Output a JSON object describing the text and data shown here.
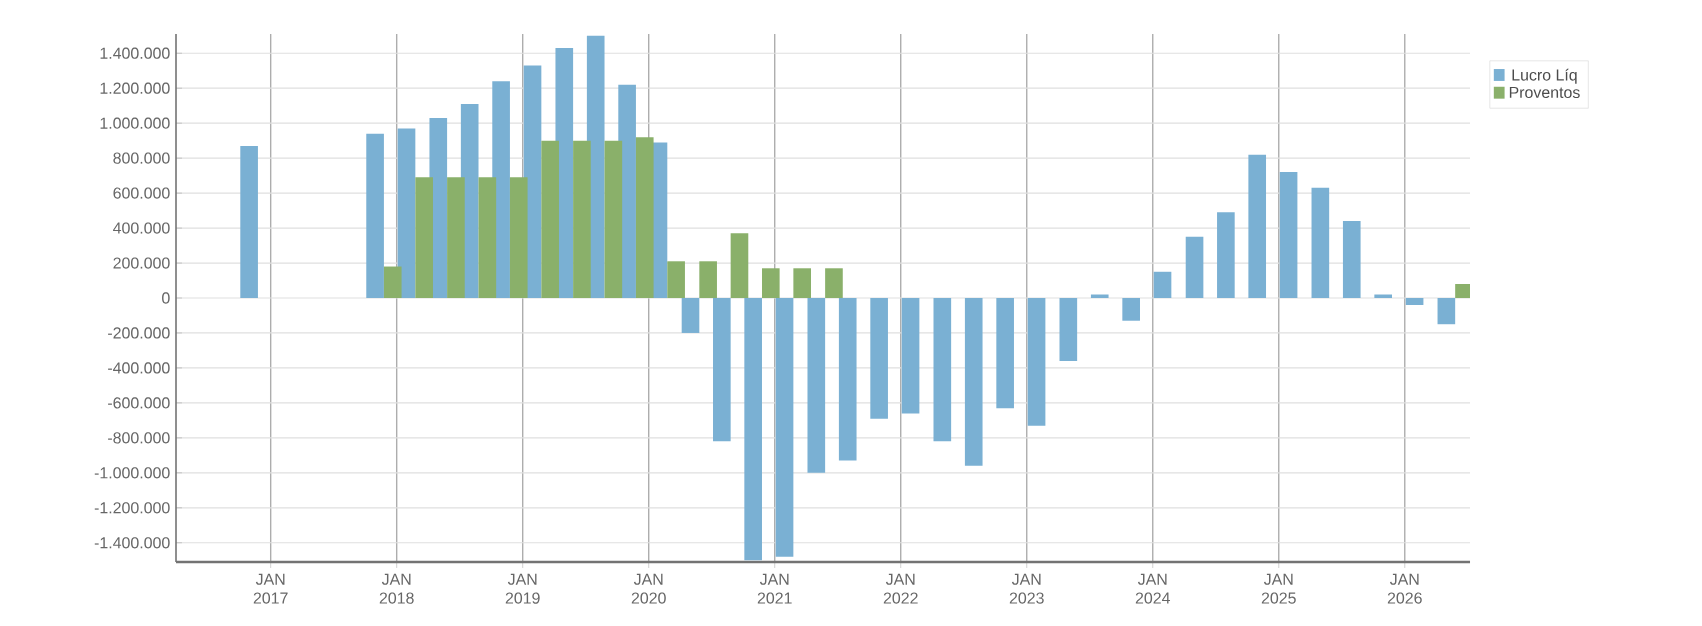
{
  "chart_data": {
    "type": "bar",
    "x": [
      "2016-11-25",
      "2017-11-25",
      "2018-02-24",
      "2018-05-27",
      "2018-08-26",
      "2018-11-25",
      "2019-02-24",
      "2019-05-27",
      "2019-08-26",
      "2019-11-25",
      "2020-02-24",
      "2020-05-27",
      "2020-08-26",
      "2020-11-25",
      "2021-02-24",
      "2021-05-27",
      "2021-08-26",
      "2021-11-25",
      "2022-02-24",
      "2022-05-27",
      "2022-08-26",
      "2022-11-25",
      "2023-02-24",
      "2023-05-27",
      "2023-08-26",
      "2023-11-25",
      "2024-02-24",
      "2024-05-27",
      "2024-08-26",
      "2024-11-25",
      "2025-02-24",
      "2025-05-27",
      "2025-08-26",
      "2025-11-25",
      "2026-02-24",
      "2026-05-27"
    ],
    "series": [
      {
        "name": "Lucro Líq",
        "color": "#7ab0d3",
        "values": [
          870000,
          940000,
          970000,
          1030000,
          1110000,
          1240000,
          1330000,
          1430000,
          1500000,
          1220000,
          890000,
          -200000,
          -820000,
          -1500000,
          -1480000,
          -1000000,
          -930000,
          -690000,
          -660000,
          -820000,
          -960000,
          -630000,
          -730000,
          -360000,
          20000,
          -130000,
          150000,
          350000,
          490000,
          820000,
          720000,
          630000,
          440000,
          20000,
          -40000,
          -150000
        ]
      },
      {
        "name": "Proventos",
        "color": "#8ab06a",
        "values": [
          0,
          180000,
          690000,
          690000,
          690000,
          690000,
          900000,
          900000,
          900000,
          920000,
          210000,
          210000,
          370000,
          170000,
          170000,
          170000,
          0,
          0,
          0,
          0,
          0,
          0,
          0,
          0,
          0,
          0,
          0,
          0,
          0,
          0,
          0,
          0,
          0,
          0,
          0,
          80000
        ]
      }
    ],
    "xlim": [
      "2016-04-01",
      "2026-07-09"
    ],
    "ylim": [
      -1510000,
      1510000
    ],
    "xticks": [
      {
        "value": "2017-01-01",
        "label": "JAN 2017"
      },
      {
        "value": "2018-01-01",
        "label": "JAN 2018"
      },
      {
        "value": "2019-01-01",
        "label": "JAN 2019"
      },
      {
        "value": "2020-01-01",
        "label": "JAN 2020"
      },
      {
        "value": "2021-01-01",
        "label": "JAN 2021"
      },
      {
        "value": "2022-01-01",
        "label": "JAN 2022"
      },
      {
        "value": "2023-01-01",
        "label": "JAN 2023"
      },
      {
        "value": "2024-01-01",
        "label": "JAN 2024"
      },
      {
        "value": "2025-01-01",
        "label": "JAN 2025"
      },
      {
        "value": "2026-01-01",
        "label": "JAN 2026"
      }
    ],
    "yticks": [
      {
        "value": -1400000,
        "label": "-1.400.000"
      },
      {
        "value": -1200000,
        "label": "-1.200.000"
      },
      {
        "value": -1000000,
        "label": "-1.000.000"
      },
      {
        "value": -800000,
        "label": "-800.000"
      },
      {
        "value": -600000,
        "label": "-600.000"
      },
      {
        "value": -400000,
        "label": "-400.000"
      },
      {
        "value": -200000,
        "label": "-200.000"
      },
      {
        "value": 0,
        "label": "0"
      },
      {
        "value": 200000,
        "label": "200.000"
      },
      {
        "value": 400000,
        "label": "400.000"
      },
      {
        "value": 600000,
        "label": "600.000"
      },
      {
        "value": 800000,
        "label": "800.000"
      },
      {
        "value": 1000000,
        "label": "1.000.000"
      },
      {
        "value": 1200000,
        "label": "1.200.000"
      },
      {
        "value": 1400000,
        "label": "1.400.000"
      }
    ],
    "grid": true,
    "legend": "top right"
  }
}
